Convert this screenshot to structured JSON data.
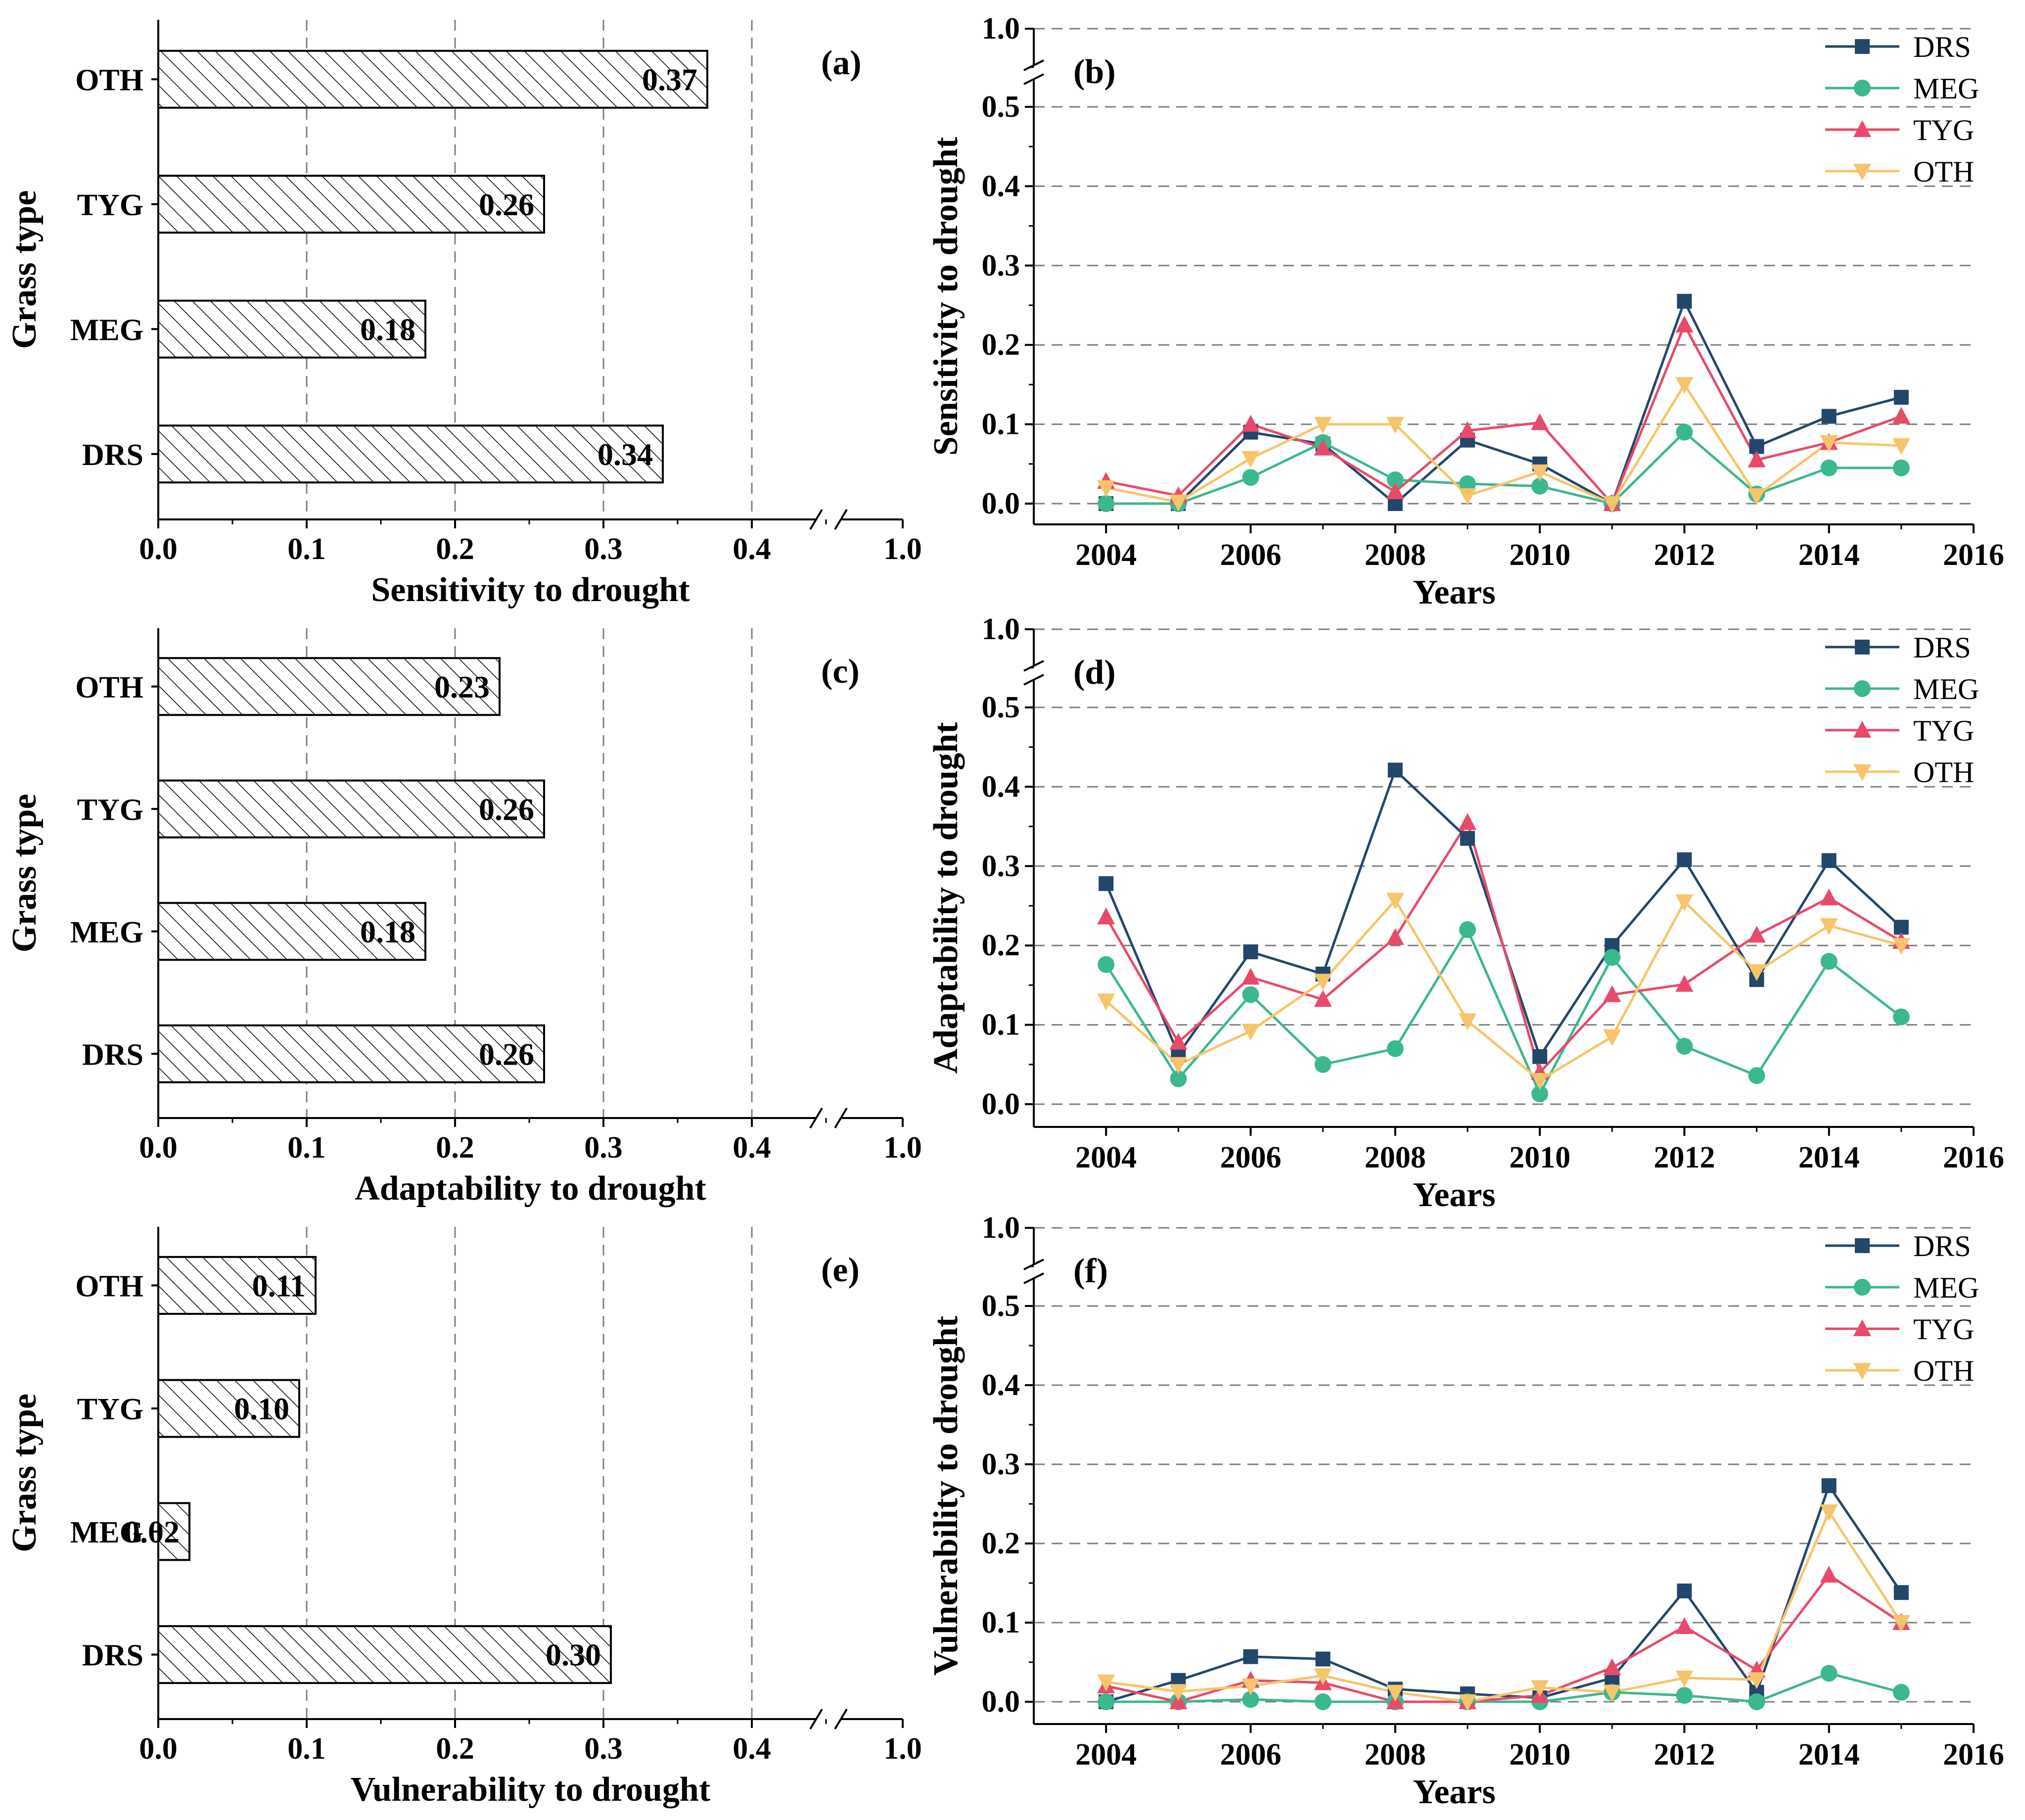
{
  "colors": {
    "DRS": "#23476b",
    "MEG": "#3cb88e",
    "TYG": "#e84a6a",
    "OTH": "#f7c46b",
    "grid": "#7f7f7f",
    "bar_fill": "#ffffff",
    "axis": "#000000"
  },
  "chart_data": [
    {
      "type": "bar",
      "orientation": "horizontal",
      "panel_label": "(a)",
      "categories": [
        "DRS",
        "MEG",
        "TYG",
        "OTH"
      ],
      "values": [
        0.34,
        0.18,
        0.26,
        0.37
      ],
      "value_labels": [
        "0.34",
        "0.18",
        "0.26",
        "0.37"
      ],
      "xlabel": "Sensitivity to drought",
      "ylabel": "Grass type",
      "xticks": [
        "0.0",
        "0.1",
        "0.2",
        "0.3",
        "0.4",
        "1.0"
      ],
      "xlim": [
        0,
        1.0
      ],
      "axis_break": [
        0.45,
        1.0
      ],
      "bar_pattern": "diagonal-hatch",
      "grid": "vertical dashed"
    },
    {
      "type": "line",
      "panel_label": "(b)",
      "x": [
        2004,
        2005,
        2006,
        2007,
        2008,
        2009,
        2010,
        2011,
        2012,
        2013,
        2014,
        2015
      ],
      "series": [
        {
          "name": "DRS",
          "marker": "square",
          "values": [
            0.0,
            0.0,
            0.09,
            0.075,
            0.0,
            0.08,
            0.05,
            0.0,
            0.255,
            0.072,
            0.11,
            0.134
          ]
        },
        {
          "name": "MEG",
          "marker": "circle",
          "values": [
            0.0,
            0.0,
            0.033,
            0.077,
            0.03,
            0.025,
            0.022,
            0.0,
            0.09,
            0.012,
            0.045,
            0.045
          ]
        },
        {
          "name": "TYG",
          "marker": "triangle-up",
          "values": [
            0.028,
            0.01,
            0.1,
            0.07,
            0.015,
            0.092,
            0.102,
            0.0,
            0.225,
            0.055,
            0.077,
            0.11
          ]
        },
        {
          "name": "OTH",
          "marker": "triangle-down",
          "values": [
            0.02,
            0.002,
            0.057,
            0.1,
            0.1,
            0.01,
            0.04,
            0.0,
            0.15,
            0.01,
            0.077,
            0.073
          ]
        }
      ],
      "xlabel": "Years",
      "ylabel": "Sensitivity to drought",
      "xticks": [
        "2004",
        "2006",
        "2008",
        "2010",
        "2012",
        "2014",
        "2016"
      ],
      "yticks": [
        "0.0",
        "0.1",
        "0.2",
        "0.3",
        "0.4",
        "0.5",
        "1.0"
      ],
      "xlim": [
        2003,
        2016
      ],
      "ylim": [
        0,
        1.0
      ],
      "axis_break": [
        0.55,
        1.0
      ],
      "legend": "top-right",
      "grid": "horizontal dashed"
    },
    {
      "type": "bar",
      "orientation": "horizontal",
      "panel_label": "(c)",
      "categories": [
        "DRS",
        "MEG",
        "TYG",
        "OTH"
      ],
      "values": [
        0.26,
        0.18,
        0.26,
        0.23
      ],
      "value_labels": [
        "0.26",
        "0.18",
        "0.26",
        "0.23"
      ],
      "xlabel": "Adaptability to drought",
      "ylabel": "Grass type",
      "xticks": [
        "0.0",
        "0.1",
        "0.2",
        "0.3",
        "0.4",
        "1.0"
      ],
      "xlim": [
        0,
        1.0
      ],
      "axis_break": [
        0.45,
        1.0
      ],
      "bar_pattern": "diagonal-hatch",
      "grid": "vertical dashed"
    },
    {
      "type": "line",
      "panel_label": "(d)",
      "x": [
        2004,
        2005,
        2006,
        2007,
        2008,
        2009,
        2010,
        2011,
        2012,
        2013,
        2014,
        2015
      ],
      "series": [
        {
          "name": "DRS",
          "marker": "square",
          "values": [
            0.278,
            0.063,
            0.192,
            0.164,
            0.421,
            0.335,
            0.06,
            0.2,
            0.308,
            0.157,
            0.307,
            0.223
          ]
        },
        {
          "name": "MEG",
          "marker": "circle",
          "values": [
            0.176,
            0.032,
            0.138,
            0.05,
            0.07,
            0.22,
            0.013,
            0.185,
            0.073,
            0.036,
            0.18,
            0.11
          ]
        },
        {
          "name": "TYG",
          "marker": "triangle-up",
          "values": [
            0.236,
            0.078,
            0.16,
            0.132,
            0.21,
            0.355,
            0.04,
            0.138,
            0.151,
            0.213,
            0.26,
            0.205
          ]
        },
        {
          "name": "OTH",
          "marker": "triangle-down",
          "values": [
            0.13,
            0.05,
            0.092,
            0.155,
            0.257,
            0.105,
            0.03,
            0.085,
            0.255,
            0.167,
            0.225,
            0.2
          ]
        }
      ],
      "xlabel": "Years",
      "ylabel": "Adaptability to drought",
      "xticks": [
        "2004",
        "2006",
        "2008",
        "2010",
        "2012",
        "2014",
        "2016"
      ],
      "yticks": [
        "0.0",
        "0.1",
        "0.2",
        "0.3",
        "0.4",
        "0.5",
        "1.0"
      ],
      "xlim": [
        2003,
        2016
      ],
      "ylim": [
        0,
        1.0
      ],
      "axis_break": [
        0.55,
        1.0
      ],
      "legend": "top-right",
      "grid": "horizontal dashed"
    },
    {
      "type": "bar",
      "orientation": "horizontal",
      "panel_label": "(e)",
      "categories": [
        "DRS",
        "MEG",
        "TYG",
        "OTH"
      ],
      "values": [
        0.305,
        0.021,
        0.095,
        0.106
      ],
      "value_labels": [
        "0.30",
        "0.02",
        "0.10",
        "0.11"
      ],
      "xlabel": "Vulnerability to drought",
      "ylabel": "Grass type",
      "xticks": [
        "0.0",
        "0.1",
        "0.2",
        "0.3",
        "0.4",
        "1.0"
      ],
      "xlim": [
        0,
        1.0
      ],
      "axis_break": [
        0.45,
        1.0
      ],
      "bar_pattern": "diagonal-hatch",
      "grid": "vertical dashed"
    },
    {
      "type": "line",
      "panel_label": "(f)",
      "x": [
        2004,
        2005,
        2006,
        2007,
        2008,
        2009,
        2010,
        2011,
        2012,
        2013,
        2014,
        2015
      ],
      "series": [
        {
          "name": "DRS",
          "marker": "square",
          "values": [
            0.0,
            0.027,
            0.057,
            0.054,
            0.016,
            0.01,
            0.005,
            0.03,
            0.14,
            0.012,
            0.273,
            0.138
          ]
        },
        {
          "name": "MEG",
          "marker": "circle",
          "values": [
            0.0,
            0.0,
            0.003,
            0.0,
            0.0,
            0.0,
            0.0,
            0.012,
            0.008,
            0.0,
            0.036,
            0.012
          ]
        },
        {
          "name": "TYG",
          "marker": "triangle-up",
          "values": [
            0.02,
            0.0,
            0.027,
            0.024,
            0.0,
            0.0,
            0.008,
            0.043,
            0.095,
            0.04,
            0.16,
            0.1
          ]
        },
        {
          "name": "OTH",
          "marker": "triangle-down",
          "values": [
            0.025,
            0.013,
            0.02,
            0.033,
            0.012,
            0.0,
            0.018,
            0.012,
            0.03,
            0.028,
            0.24,
            0.1
          ]
        }
      ],
      "xlabel": "Years",
      "ylabel": "Vulnerability to drought",
      "xticks": [
        "2004",
        "2006",
        "2008",
        "2010",
        "2012",
        "2014",
        "2016"
      ],
      "yticks": [
        "0.0",
        "0.1",
        "0.2",
        "0.3",
        "0.4",
        "0.5",
        "1.0"
      ],
      "xlim": [
        2003,
        2016
      ],
      "ylim": [
        0,
        1.0
      ],
      "axis_break": [
        0.55,
        1.0
      ],
      "legend": "top-right",
      "grid": "horizontal dashed"
    }
  ]
}
